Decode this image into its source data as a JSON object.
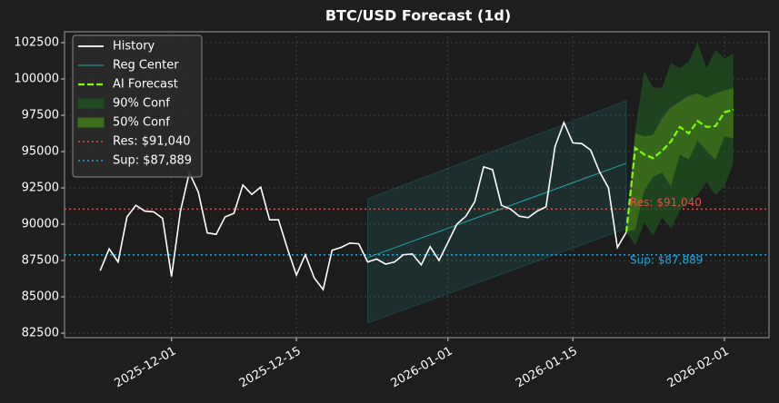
{
  "chart_data": {
    "type": "line",
    "title": "BTC/USD Forecast (1d)",
    "x": [
      "2025-11-23",
      "2025-11-24",
      "2025-11-25",
      "2025-11-26",
      "2025-11-27",
      "2025-11-28",
      "2025-11-29",
      "2025-11-30",
      "2025-12-01",
      "2025-12-02",
      "2025-12-03",
      "2025-12-04",
      "2025-12-05",
      "2025-12-06",
      "2025-12-07",
      "2025-12-08",
      "2025-12-09",
      "2025-12-10",
      "2025-12-11",
      "2025-12-12",
      "2025-12-13",
      "2025-12-14",
      "2025-12-15",
      "2025-12-16",
      "2025-12-17",
      "2025-12-18",
      "2025-12-19",
      "2025-12-20",
      "2025-12-21",
      "2025-12-22",
      "2025-12-23",
      "2025-12-24",
      "2025-12-25",
      "2025-12-26",
      "2025-12-27",
      "2025-12-28",
      "2025-12-29",
      "2025-12-30",
      "2025-12-31",
      "2026-01-01",
      "2026-01-02",
      "2026-01-03",
      "2026-01-04",
      "2026-01-05",
      "2026-01-06",
      "2026-01-07",
      "2026-01-08",
      "2026-01-09",
      "2026-01-10",
      "2026-01-11",
      "2026-01-12",
      "2026-01-13",
      "2026-01-14",
      "2026-01-15",
      "2026-01-16",
      "2026-01-17",
      "2026-01-18",
      "2026-01-19",
      "2026-01-20",
      "2026-01-21"
    ],
    "xlim": [
      "2025-11-19",
      "2026-02-06"
    ],
    "xticks": [
      "2025-12-01",
      "2025-12-15",
      "2026-01-01",
      "2026-01-15",
      "2026-02-01"
    ],
    "ylim": [
      82190,
      103250
    ],
    "yticks": [
      82500,
      85000,
      87500,
      90000,
      92500,
      95000,
      97500,
      100000,
      102500
    ],
    "grid": true,
    "legend": "upper left",
    "series": [
      {
        "name": "History",
        "color": "#ffffff",
        "values": [
          86800,
          88300,
          87400,
          90500,
          91300,
          90900,
          90850,
          90400,
          86400,
          90900,
          93550,
          92200,
          89400,
          89300,
          90500,
          90750,
          92700,
          92050,
          92550,
          90300,
          90300,
          88300,
          86500,
          87900,
          86300,
          85500,
          88200,
          88400,
          88700,
          88650,
          87400,
          87600,
          87250,
          87400,
          87900,
          87950,
          87200,
          88450,
          87500,
          88750,
          90000,
          90550,
          91550,
          93950,
          93750,
          91300,
          91050,
          90550,
          90450,
          90900,
          91200,
          95350,
          97000,
          95600,
          95550,
          95100,
          93600,
          92500,
          88400,
          89450
        ]
      }
    ],
    "regression": {
      "name": "Reg Center",
      "color": "#20a8a8",
      "x": [
        "2025-12-23",
        "2026-01-21"
      ],
      "values": [
        87700,
        94200
      ],
      "upper": [
        91750,
        98500
      ],
      "lower": [
        83200,
        89700
      ]
    },
    "forecast": {
      "name": "AI Forecast",
      "color": "#7fff00",
      "x": [
        "2026-01-21",
        "2026-01-22",
        "2026-01-23",
        "2026-01-24",
        "2026-01-25",
        "2026-01-26",
        "2026-01-27",
        "2026-01-28",
        "2026-01-29",
        "2026-01-30",
        "2026-01-31",
        "2026-02-01",
        "2026-02-02"
      ],
      "values": [
        89450,
        95250,
        94800,
        94550,
        95050,
        95700,
        96700,
        96250,
        97100,
        96700,
        96750,
        97700,
        97900
      ],
      "bands": [
        {
          "name": "90% Conf",
          "color": "#1f4a1f",
          "upper": [
            89450,
            96400,
            100550,
            99400,
            99400,
            101100,
            100750,
            101200,
            102500,
            100750,
            102000,
            101400,
            101750
          ],
          "lower": [
            89450,
            88550,
            90100,
            89200,
            90450,
            89700,
            90950,
            91550,
            92000,
            92900,
            92000,
            92600,
            94200
          ]
        },
        {
          "name": "50% Conf",
          "color": "#3c6e1c",
          "upper": [
            89450,
            96250,
            96050,
            96150,
            97300,
            98050,
            98450,
            98850,
            99000,
            98700,
            99000,
            99200,
            99400
          ],
          "lower": [
            89450,
            89650,
            92300,
            93250,
            93550,
            92600,
            94800,
            94450,
            95750,
            95050,
            94450,
            96050,
            95900
          ]
        }
      ]
    },
    "hlines": [
      {
        "name": "Res: $91,040",
        "value": 91040,
        "color": "#e0504a"
      },
      {
        "name": "Sup: $87,889",
        "value": 87889,
        "color": "#1aa7e0"
      }
    ]
  }
}
